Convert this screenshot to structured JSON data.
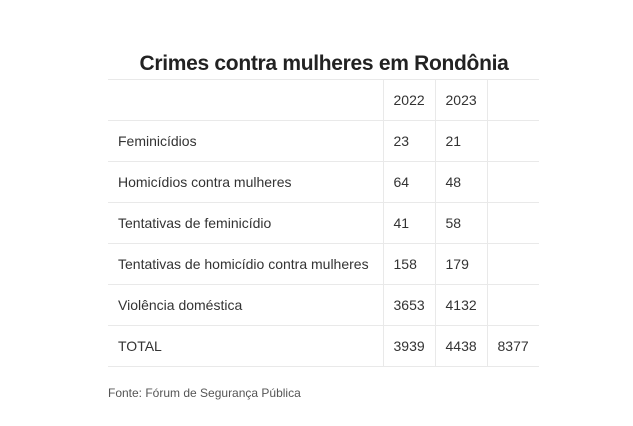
{
  "title": "Crimes contra mulheres em Rondônia",
  "table": {
    "header": [
      "",
      "2022",
      "2023",
      ""
    ],
    "rows": [
      {
        "label": "Feminicídios",
        "y2022": "23",
        "y2023": "21",
        "total": ""
      },
      {
        "label": "Homicídios contra mulheres",
        "y2022": "64",
        "y2023": "48",
        "total": ""
      },
      {
        "label": "Tentativas de feminicídio",
        "y2022": "41",
        "y2023": "58",
        "total": ""
      },
      {
        "label": "Tentativas de homicídio contra mulheres",
        "y2022": "158",
        "y2023": "179",
        "total": ""
      },
      {
        "label": "Violência doméstica",
        "y2022": "3653",
        "y2023": "4132",
        "total": ""
      },
      {
        "label": "TOTAL",
        "y2022": "3939",
        "y2023": "4438",
        "total": "8377"
      }
    ]
  },
  "source": "Fonte: Fórum de Segurança Pública"
}
